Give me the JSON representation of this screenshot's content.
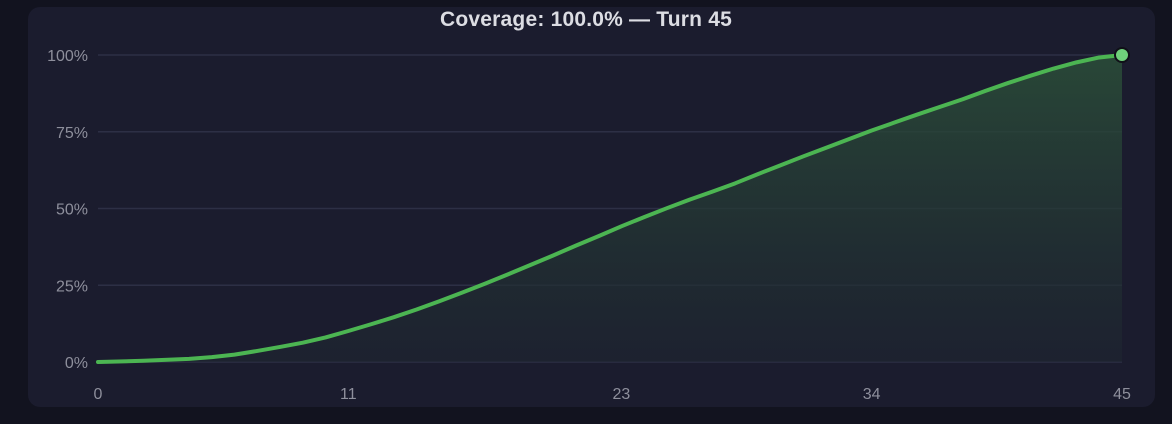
{
  "title": "Coverage: 100.0% — Turn 45",
  "colors": {
    "background": "#12131f",
    "panel": "#1b1c2e",
    "line": "#4cb552",
    "marker": "#6fd17a",
    "area_top": "#2b4f39",
    "grid": "#2d2f45",
    "text": "#8e8f9c"
  },
  "chart_data": {
    "type": "area",
    "title": "Coverage: 100.0% — Turn 45",
    "xlabel": "",
    "ylabel": "",
    "xlim": [
      0,
      45
    ],
    "ylim": [
      0,
      100
    ],
    "x_ticks": [
      0,
      11,
      23,
      34,
      45
    ],
    "y_ticks": [
      "0%",
      "25%",
      "50%",
      "75%",
      "100%"
    ],
    "y_tick_values": [
      0,
      25,
      50,
      75,
      100
    ],
    "grid": true,
    "legend": "none",
    "series": [
      {
        "x": [
          0,
          2,
          4,
          5,
          6,
          7,
          8,
          9,
          10,
          11,
          12,
          13,
          14,
          15,
          16,
          17,
          18,
          19,
          20,
          21,
          22,
          23,
          24,
          25,
          26,
          27,
          28,
          29,
          30,
          31,
          32,
          33,
          34,
          35,
          36,
          37,
          38,
          39,
          40,
          41,
          42,
          43,
          44,
          45
        ],
        "values": [
          0,
          0.4,
          1.0,
          1.6,
          2.4,
          3.6,
          4.9,
          6.3,
          8.0,
          10.1,
          12.3,
          14.6,
          17.1,
          19.8,
          22.6,
          25.5,
          28.5,
          31.6,
          34.7,
          37.9,
          41.0,
          44.2,
          47.2,
          50.1,
          52.9,
          55.5,
          58.2,
          61.2,
          64.1,
          67.0,
          69.8,
          72.6,
          75.4,
          78.0,
          80.6,
          83.1,
          85.6,
          88.3,
          90.9,
          93.3,
          95.6,
          97.6,
          99.2,
          100.0
        ]
      }
    ],
    "end_marker": {
      "x": 45,
      "y": 100
    }
  }
}
